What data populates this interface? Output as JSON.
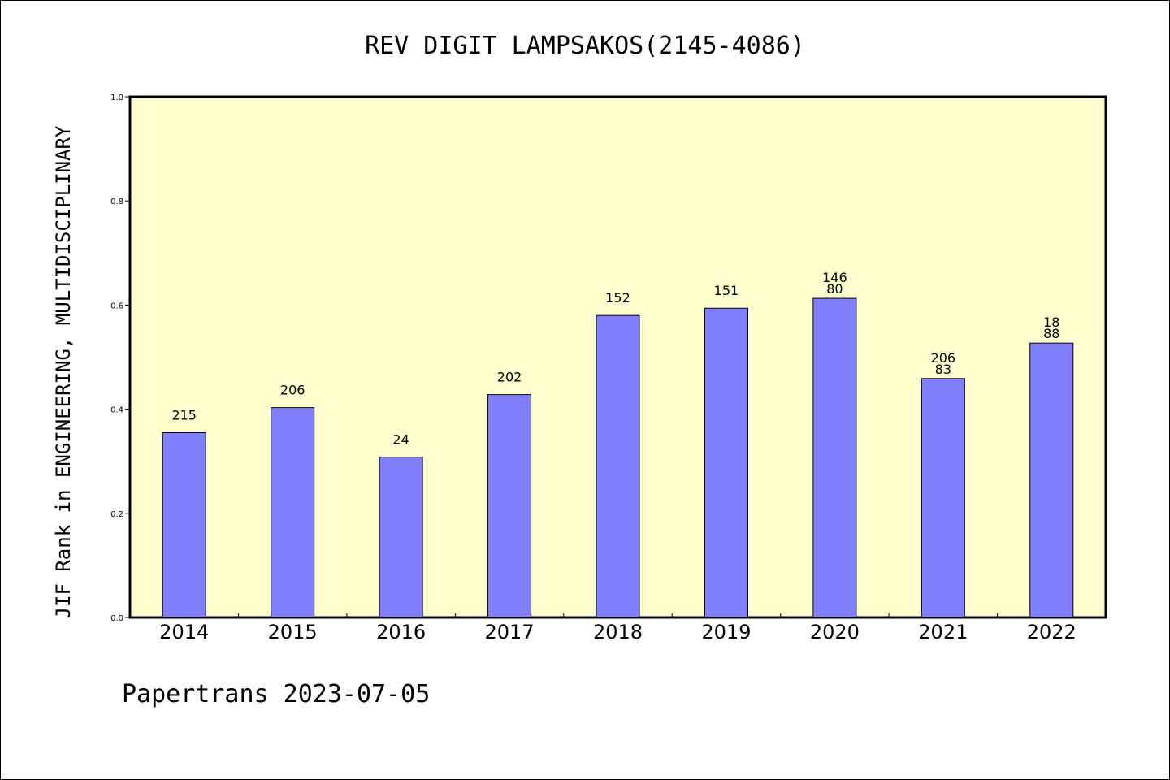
{
  "chart_data": {
    "type": "bar",
    "title": "REV DIGIT LAMPSAKOS(2145-4086)",
    "xlabel": "",
    "ylabel": "JIF Rank in ENGINEERING, MULTIDISCIPLINARY",
    "ylim": [
      0.0,
      1.0
    ],
    "yticks": [
      "0.0",
      "0.2",
      "0.4",
      "0.6",
      "0.8",
      "1.0"
    ],
    "categories": [
      "2014",
      "2015",
      "2016",
      "2017",
      "2018",
      "2019",
      "2020",
      "2021",
      "2022"
    ],
    "values": [
      0.355,
      0.403,
      0.308,
      0.428,
      0.58,
      0.594,
      0.613,
      0.459,
      0.527
    ],
    "bar_labels": [
      [
        "215"
      ],
      [
        "206"
      ],
      [
        "24"
      ],
      [
        "202"
      ],
      [
        "152"
      ],
      [
        "151"
      ],
      [
        "146",
        "80"
      ],
      [
        "206",
        "83"
      ],
      [
        "18",
        "88"
      ]
    ],
    "grid": false,
    "colors": {
      "plot_background": "#ffffd0",
      "bar_fill": "#8080ff",
      "bar_stroke": "#000000"
    }
  },
  "footer": "Papertrans 2023-07-05"
}
